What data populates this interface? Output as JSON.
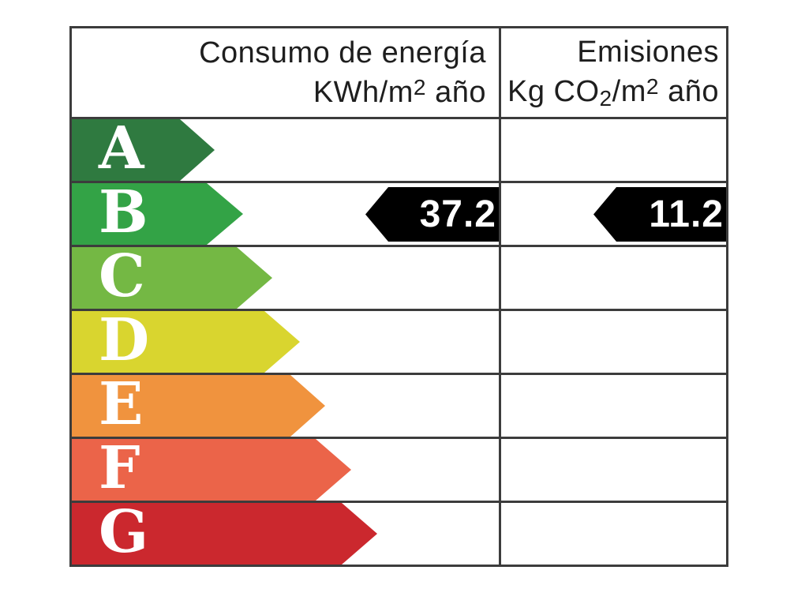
{
  "header": {
    "consumption": {
      "line1": "Consumo de energía",
      "line2_pre": "KWh/m",
      "line2_sup": "2",
      "line2_post": " año"
    },
    "emissions": {
      "line1": "Emisiones",
      "line2_pre": "Kg CO",
      "line2_sub": "2",
      "line2_mid": "/m",
      "line2_sup": "2",
      "line2_post": " año"
    }
  },
  "ratings": [
    {
      "letter": "A",
      "color": "#2f7a40"
    },
    {
      "letter": "B",
      "color": "#33a346"
    },
    {
      "letter": "C",
      "color": "#74b844"
    },
    {
      "letter": "D",
      "color": "#d9d52f"
    },
    {
      "letter": "E",
      "color": "#f0933e"
    },
    {
      "letter": "F",
      "color": "#eb6449"
    },
    {
      "letter": "G",
      "color": "#cb282e"
    }
  ],
  "values": {
    "consumption": "37.2",
    "emissions": "11.2"
  },
  "colors": {
    "value_arrow": "#000000",
    "grid_border": "#3c3c3c",
    "value_text": "#ffffff",
    "letter_text": "#ffffff",
    "header_text": "#1e1e1e",
    "background": "#ffffff"
  },
  "chart_data": {
    "type": "bar",
    "title": "",
    "categories": [
      "A",
      "B",
      "C",
      "D",
      "E",
      "F",
      "G"
    ],
    "category_colors": [
      "#2f7a40",
      "#33a346",
      "#74b844",
      "#d9d52f",
      "#f0933e",
      "#eb6449",
      "#cb282e"
    ],
    "columns": [
      "Consumo de energía KWh/m2 año",
      "Emisiones Kg CO2/m2 año"
    ],
    "series": [
      {
        "name": "Consumo de energía KWh/m2 año",
        "rated_category": "B",
        "value": 37.2
      },
      {
        "name": "Emisiones Kg CO2/m2 año",
        "rated_category": "B",
        "value": 11.2
      }
    ],
    "legend_position": "none",
    "grid": true,
    "notes": "Energy efficiency label; colored arrows A-G increase in length; black left-pointing markers show values at rating B"
  }
}
